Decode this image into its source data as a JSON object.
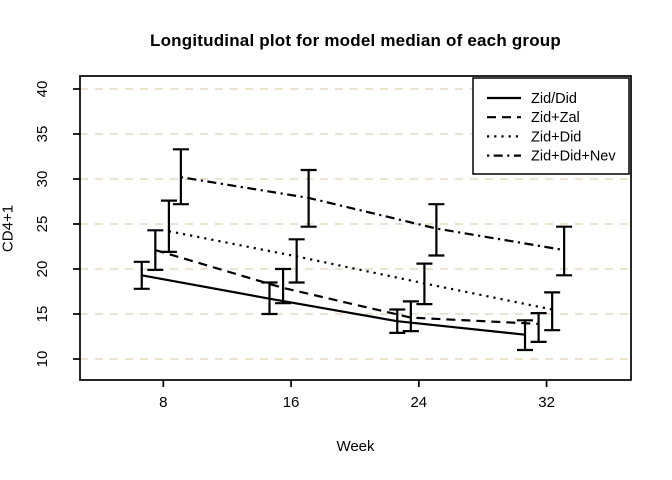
{
  "chart_data": {
    "type": "line",
    "title": "Longitudinal plot for model median of each group",
    "xlabel": "Week",
    "ylabel": "CD4+1",
    "xticks": [
      8,
      16,
      24,
      32
    ],
    "yticks": [
      10,
      15,
      20,
      25,
      30,
      35,
      40
    ],
    "xlim": [
      2.8,
      37.2
    ],
    "ylim": [
      7.6,
      41.4
    ],
    "grid": "horizontal-dashed",
    "grid_color": "#eadfc8",
    "line_color": "#000000",
    "legend_position": "topright",
    "error_bars": true,
    "x": [
      8,
      16,
      24,
      32
    ],
    "series": [
      {
        "name": "Zid/Did",
        "linetype": "solid",
        "x_offset": -1.35,
        "median": [
          19.3,
          16.7,
          14.2,
          12.7
        ],
        "lower": [
          17.8,
          15.0,
          12.9,
          11.0
        ],
        "upper": [
          20.8,
          18.5,
          15.5,
          14.3
        ]
      },
      {
        "name": "Zid+Zal",
        "linetype": "dashed",
        "x_offset": -0.5,
        "median": [
          22.1,
          17.9,
          14.6,
          13.9
        ],
        "lower": [
          19.9,
          16.2,
          13.1,
          11.9
        ],
        "upper": [
          24.3,
          20.0,
          16.4,
          15.1
        ]
      },
      {
        "name": "Zid+Did",
        "linetype": "dotted",
        "x_offset": 0.35,
        "median": [
          24.2,
          21.4,
          18.4,
          15.5
        ],
        "lower": [
          21.9,
          18.5,
          16.1,
          13.2
        ],
        "upper": [
          27.6,
          23.3,
          20.6,
          17.4
        ]
      },
      {
        "name": "Zid+Did+Nev",
        "linetype": "dashdot",
        "x_offset": 1.1,
        "median": [
          30.2,
          27.9,
          24.5,
          22.1
        ],
        "lower": [
          27.2,
          24.7,
          21.5,
          19.3
        ],
        "upper": [
          33.3,
          31.0,
          27.2,
          24.7
        ]
      }
    ]
  }
}
